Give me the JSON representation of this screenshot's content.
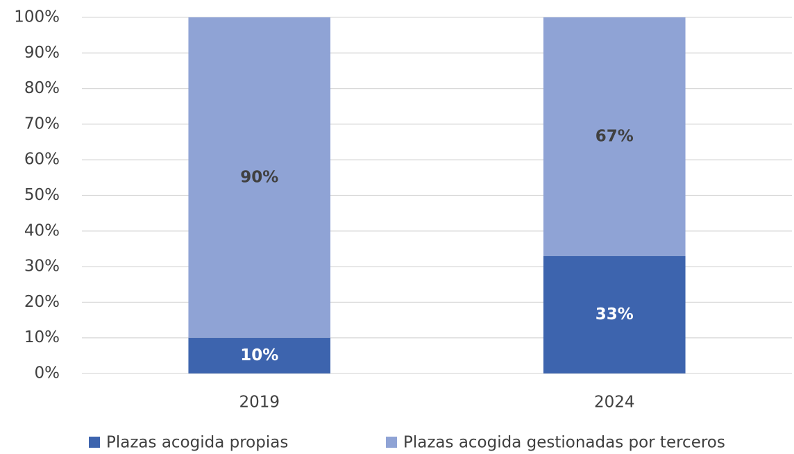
{
  "chart_data": {
    "type": "stacked_bar",
    "categories": [
      "2019",
      "2024"
    ],
    "series": [
      {
        "name": "Plazas acogida propias",
        "color": "#3d64ae",
        "values": [
          10,
          33
        ],
        "value_labels": [
          "10%",
          "33%"
        ]
      },
      {
        "name": "Plazas acogida gestionadas por terceros",
        "color": "#8fa3d5",
        "values": [
          90,
          67
        ],
        "value_labels": [
          "90%",
          "67%"
        ]
      }
    ],
    "ylim": [
      0,
      100
    ],
    "yticks": [
      {
        "value": 0,
        "label": "0%"
      },
      {
        "value": 10,
        "label": "10%"
      },
      {
        "value": 20,
        "label": "20%"
      },
      {
        "value": 30,
        "label": "30%"
      },
      {
        "value": 40,
        "label": "40%"
      },
      {
        "value": 50,
        "label": "50%"
      },
      {
        "value": 60,
        "label": "60%"
      },
      {
        "value": 70,
        "label": "70%"
      },
      {
        "value": 80,
        "label": "80%"
      },
      {
        "value": 90,
        "label": "90%"
      },
      {
        "value": 100,
        "label": "100%"
      }
    ],
    "grid": true,
    "legend": "bottom"
  }
}
